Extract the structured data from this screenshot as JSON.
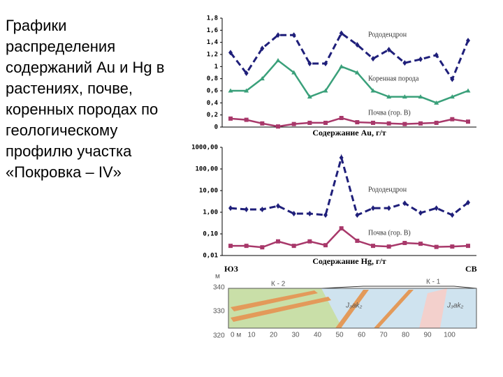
{
  "title": "Графики распределения содержаний Au и Hg в растениях, почве, коренных породах по геологическому профилю участка «Покровка – IV»",
  "chart_data": [
    {
      "type": "line",
      "xlabel": "Содержание Au, г/т",
      "categories": [
        null,
        null,
        null,
        null,
        null,
        null,
        null,
        null,
        null,
        null,
        null,
        null,
        null,
        null,
        null,
        null
      ],
      "ylim": [
        0,
        1.8
      ],
      "yticks": [
        0,
        {
          "value": 0.2,
          "label": "0,2"
        },
        {
          "value": 0.4,
          "label": "0,4"
        },
        {
          "value": 0.6,
          "label": "0,6"
        },
        {
          "value": 0.8,
          "label": "0,8"
        },
        1,
        {
          "value": 1.2,
          "label": "1,2"
        },
        {
          "value": 1.4,
          "label": "1,4"
        },
        {
          "value": 1.6,
          "label": "1,6"
        },
        {
          "value": 1.8,
          "label": "1,8"
        }
      ],
      "series": [
        {
          "name": "Рододендрон",
          "color": "#1f1f7a",
          "dashed": true,
          "marker": "diamond",
          "values": [
            1.23,
            0.89,
            1.3,
            1.52,
            1.52,
            1.05,
            1.05,
            1.55,
            1.36,
            1.13,
            1.28,
            1.06,
            1.12,
            1.19,
            0.79,
            1.43
          ]
        },
        {
          "name": "Коренная порода",
          "color": "#3aa07a",
          "dashed": false,
          "marker": "triangle",
          "values": [
            0.6,
            0.6,
            0.8,
            1.1,
            0.9,
            0.5,
            0.6,
            1.0,
            0.9,
            0.6,
            0.5,
            0.5,
            0.5,
            0.4,
            0.5,
            0.6
          ]
        },
        {
          "name": "Почва (гор. В)",
          "color": "#a8386a",
          "dashed": false,
          "marker": "square",
          "values": [
            0.14,
            0.12,
            0.06,
            0.01,
            0.05,
            0.07,
            0.07,
            0.15,
            0.08,
            0.07,
            0.06,
            0.05,
            0.06,
            0.07,
            0.13,
            0.09
          ]
        }
      ]
    },
    {
      "type": "line",
      "xlabel": "Содержание Hg, г/т",
      "log_scale": true,
      "categories": [
        null,
        null,
        null,
        null,
        null,
        null,
        null,
        null,
        null,
        null,
        null,
        null,
        null,
        null,
        null,
        null
      ],
      "ylim": [
        0.01,
        1000
      ],
      "yticks": [
        {
          "value": 0.01,
          "label": "0,01"
        },
        {
          "value": 0.1,
          "label": "0,10"
        },
        {
          "value": 1,
          "label": "1,00"
        },
        {
          "value": 10,
          "label": "10,00"
        },
        {
          "value": 100,
          "label": "100,00"
        },
        {
          "value": 1000,
          "label": "1000,00"
        }
      ],
      "series": [
        {
          "name": "Рододендрон",
          "color": "#1f1f7a",
          "dashed": true,
          "marker": "diamond",
          "values": [
            1.55,
            1.35,
            1.35,
            1.95,
            0.86,
            0.86,
            0.74,
            330,
            0.74,
            1.55,
            1.55,
            2.6,
            0.93,
            1.55,
            0.74,
            2.8
          ]
        },
        {
          "name": "Почва (гор. В)",
          "color": "#a8386a",
          "dashed": false,
          "marker": "square",
          "values": [
            0.028,
            0.028,
            0.024,
            0.045,
            0.028,
            0.045,
            0.03,
            0.18,
            0.048,
            0.028,
            0.026,
            0.038,
            0.035,
            0.025,
            0.026,
            0.028
          ]
        }
      ]
    }
  ],
  "profile": {
    "sw": "ЮЗ",
    "ne": "СВ",
    "unit": "м",
    "elevations": [
      "340",
      "330",
      "320"
    ],
    "distances": [
      "0 м",
      "10",
      "20",
      "30",
      "40",
      "50",
      "60",
      "70",
      "80",
      "90",
      "100"
    ],
    "blocks": [
      "К - 2",
      "К - 1"
    ],
    "formation": "J₃ak₂"
  }
}
